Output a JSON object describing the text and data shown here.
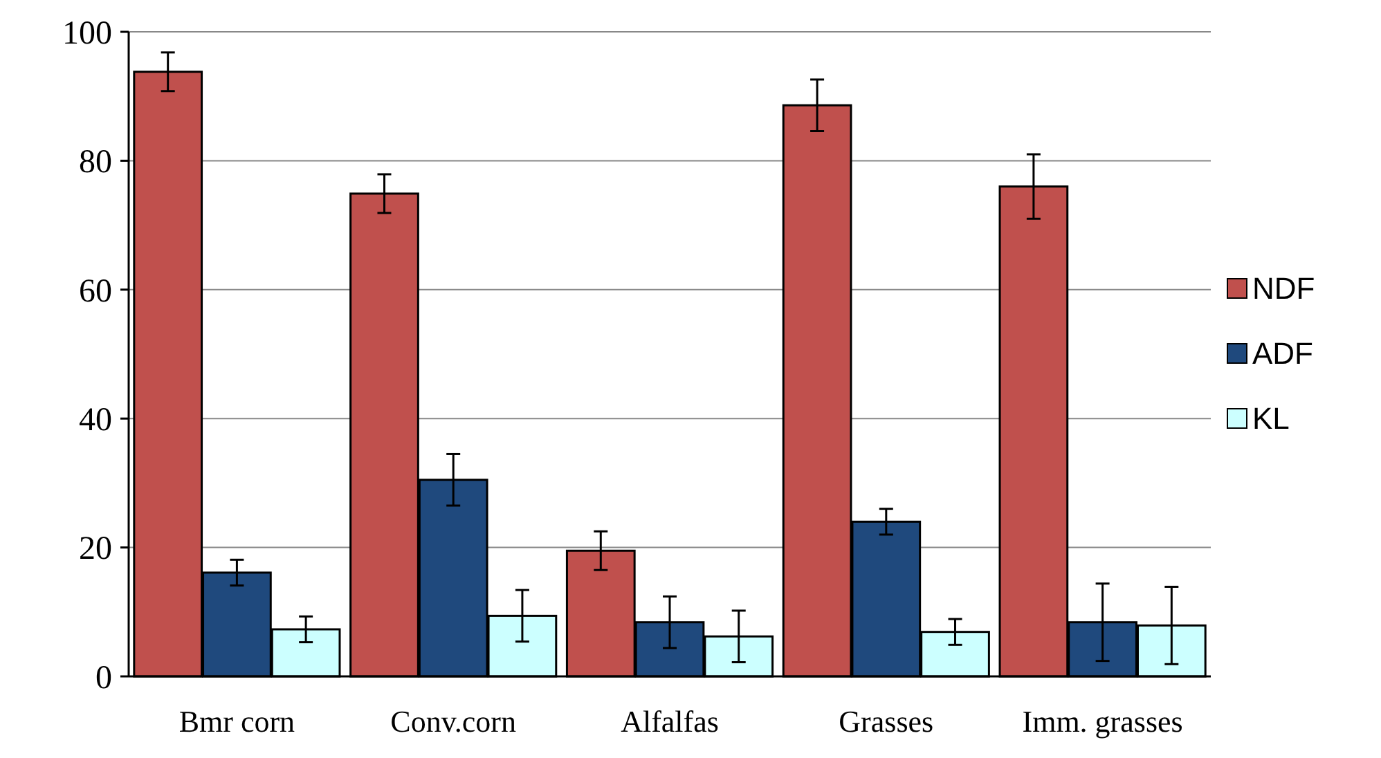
{
  "chart_data": {
    "type": "bar",
    "categories": [
      "Bmr corn",
      "Conv.corn",
      "Alfalfas",
      "Grasses",
      "Imm. grasses"
    ],
    "series": [
      {
        "name": "NDF",
        "color": "#c0504d",
        "values": [
          93.8,
          74.9,
          19.5,
          88.6,
          76.0
        ],
        "errors": [
          3,
          3,
          3,
          4,
          5
        ]
      },
      {
        "name": "ADF",
        "color": "#1f497d",
        "values": [
          16.1,
          30.5,
          8.4,
          24.0,
          8.4
        ],
        "errors": [
          2,
          4,
          4,
          2,
          6
        ]
      },
      {
        "name": "KL",
        "color": "#ccffff",
        "values": [
          7.3,
          9.4,
          6.2,
          6.9,
          7.9
        ],
        "errors": [
          2,
          4,
          4,
          2,
          6
        ]
      }
    ],
    "ylim": [
      0,
      100
    ],
    "yticks": [
      0,
      20,
      40,
      60,
      80,
      100
    ],
    "grid": "y",
    "legend": "right"
  }
}
